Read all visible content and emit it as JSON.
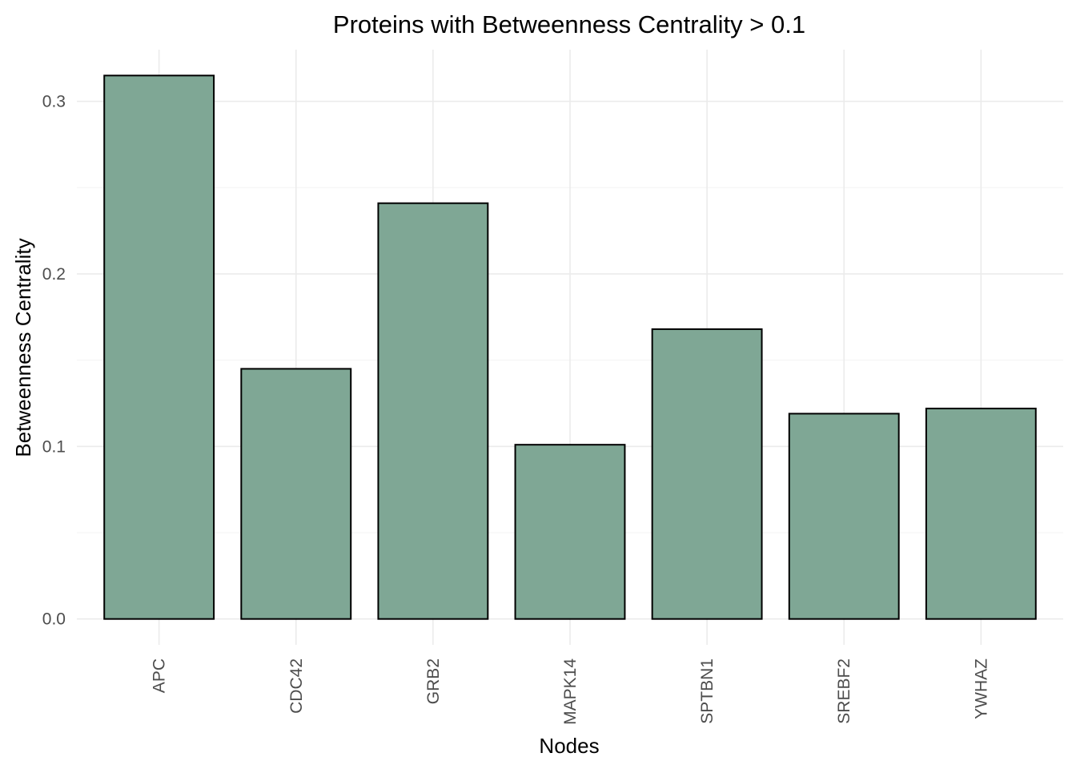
{
  "chart_data": {
    "type": "bar",
    "title": "Proteins with Betweenness Centrality > 0.1",
    "xlabel": "Nodes",
    "ylabel": "Betweenness Centrality",
    "categories": [
      "APC",
      "CDC42",
      "GRB2",
      "MAPK14",
      "SPTBN1",
      "SREBF2",
      "YWHAZ"
    ],
    "values": [
      0.315,
      0.145,
      0.241,
      0.101,
      0.168,
      0.119,
      0.122
    ],
    "ylim": [
      -0.015,
      0.33
    ],
    "yticks": [
      0.0,
      0.1,
      0.2,
      0.3
    ],
    "ytick_labels": [
      "0.0",
      "0.1",
      "0.2",
      "0.3"
    ],
    "grid": true,
    "legend": "none",
    "bar_color": "#7fa795"
  }
}
